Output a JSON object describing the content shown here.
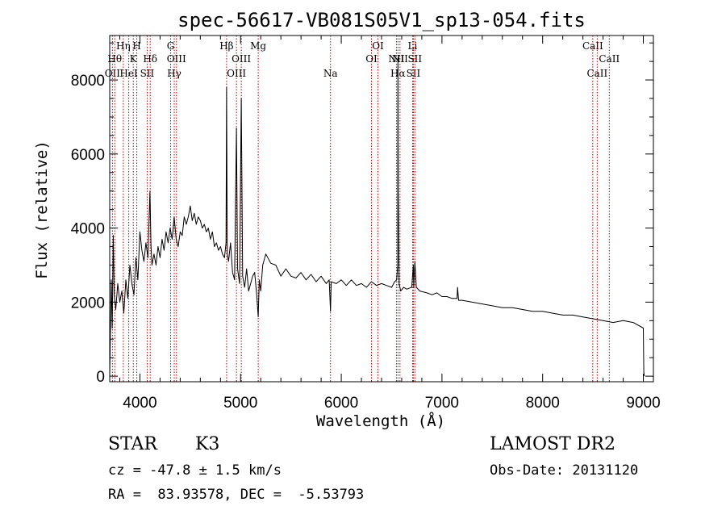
{
  "chart_data": {
    "type": "line",
    "title": "spec-56617-VB081S05V1_sp13-054.fits",
    "xlabel": "Wavelength (Å)",
    "ylabel": "Flux (relative)",
    "xlim": [
      3700,
      9100
    ],
    "ylim": [
      -150,
      9200
    ],
    "xticks": [
      4000,
      5000,
      6000,
      7000,
      8000,
      9000
    ],
    "xtick_labels": [
      "4000",
      "5000",
      "6000",
      "7000",
      "8000",
      "9000"
    ],
    "yticks": [
      0,
      2000,
      4000,
      6000,
      8000
    ],
    "ytick_labels": [
      "0",
      "2000",
      "4000",
      "6000",
      "8000"
    ],
    "grid": false,
    "series": [
      {
        "x": [
          3700,
          3715,
          3725,
          3735,
          3745,
          3760,
          3780,
          3800,
          3820,
          3840,
          3860,
          3880,
          3900,
          3920,
          3940,
          3960,
          3980,
          4000,
          4020,
          4040,
          4060,
          4080,
          4100,
          4110,
          4120,
          4140,
          4160,
          4180,
          4200,
          4220,
          4240,
          4260,
          4280,
          4300,
          4320,
          4340,
          4360,
          4380,
          4400,
          4420,
          4440,
          4460,
          4480,
          4500,
          4520,
          4540,
          4560,
          4580,
          4600,
          4620,
          4640,
          4660,
          4680,
          4700,
          4720,
          4740,
          4760,
          4780,
          4800,
          4820,
          4840,
          4855,
          4861,
          4867,
          4880,
          4900,
          4920,
          4940,
          4959,
          4970,
          4990,
          5007,
          5020,
          5040,
          5060,
          5080,
          5100,
          5120,
          5140,
          5160,
          5175,
          5185,
          5200,
          5220,
          5250,
          5300,
          5350,
          5400,
          5450,
          5500,
          5550,
          5600,
          5650,
          5700,
          5750,
          5800,
          5850,
          5880,
          5893,
          5900,
          5950,
          6000,
          6050,
          6100,
          6150,
          6200,
          6250,
          6300,
          6350,
          6400,
          6450,
          6500,
          6530,
          6550,
          6560,
          6563,
          6566,
          6575,
          6590,
          6620,
          6650,
          6700,
          6716,
          6720,
          6731,
          6745,
          6780,
          6850,
          6900,
          6950,
          7000,
          7050,
          7100,
          7150,
          7155,
          7165,
          7200,
          7300,
          7400,
          7500,
          7600,
          7700,
          7800,
          7900,
          8000,
          8100,
          8200,
          8300,
          8400,
          8500,
          8600,
          8700,
          8800,
          8900,
          9000,
          9005,
          9010
        ],
        "values": [
          0,
          2600,
          1300,
          3800,
          2200,
          1800,
          2500,
          2000,
          2300,
          1700,
          2600,
          2100,
          3000,
          2500,
          2200,
          3200,
          2600,
          3900,
          3400,
          3100,
          3600,
          3200,
          5000,
          3500,
          3000,
          3300,
          3000,
          3500,
          3200,
          3700,
          3400,
          3900,
          3600,
          4000,
          3700,
          4300,
          3700,
          3500,
          3900,
          3800,
          4300,
          4100,
          4300,
          4600,
          4200,
          4400,
          4100,
          4300,
          4200,
          4000,
          4100,
          3900,
          4000,
          3700,
          3900,
          3500,
          3600,
          3400,
          3500,
          3300,
          3200,
          3600,
          7800,
          3300,
          3100,
          3600,
          2800,
          2600,
          6700,
          2900,
          2500,
          7500,
          2700,
          2400,
          2900,
          2300,
          2500,
          2700,
          2800,
          2200,
          1600,
          2600,
          2300,
          3000,
          3300,
          3050,
          3000,
          2700,
          2900,
          2700,
          2650,
          2800,
          2600,
          2750,
          2550,
          2700,
          2500,
          2600,
          1750,
          2550,
          2500,
          2600,
          2450,
          2600,
          2450,
          2500,
          2400,
          2550,
          2450,
          2500,
          2450,
          2400,
          2550,
          2600,
          3000,
          8600,
          5000,
          2500,
          2300,
          2400,
          2350,
          2400,
          3000,
          2400,
          3100,
          2400,
          2300,
          2250,
          2200,
          2250,
          2150,
          2150,
          2100,
          2100,
          2400,
          2050,
          2050,
          2000,
          1950,
          1900,
          1850,
          1850,
          1800,
          1750,
          1750,
          1700,
          1650,
          1650,
          1600,
          1550,
          1500,
          1450,
          1500,
          1450,
          1300,
          100,
          0
        ]
      }
    ],
    "line_markers": [
      {
        "label": "OII",
        "x": 3727,
        "row": 3
      },
      {
        "label": "Hθ",
        "x": 3750,
        "row": 2
      },
      {
        "label": "Hη",
        "x": 3835,
        "row": 1
      },
      {
        "label": "HeI",
        "x": 3889,
        "row": 3
      },
      {
        "label": "K",
        "x": 3934,
        "row": 2
      },
      {
        "label": "H",
        "x": 3969,
        "row": 1
      },
      {
        "label": "SII",
        "x": 4072,
        "row": 3
      },
      {
        "label": "Hδ",
        "x": 4102,
        "row": 2
      },
      {
        "label": "G",
        "x": 4305,
        "row": 1
      },
      {
        "label": "Hγ",
        "x": 4341,
        "row": 3
      },
      {
        "label": "OIII",
        "x": 4363,
        "row": 2
      },
      {
        "label": "Hβ",
        "x": 4861,
        "row": 1
      },
      {
        "label": "OIII",
        "x": 4959,
        "row": 3
      },
      {
        "label": "OIII",
        "x": 5007,
        "row": 2
      },
      {
        "label": "Mg",
        "x": 5175,
        "row": 1
      },
      {
        "label": "Na",
        "x": 5893,
        "row": 3
      },
      {
        "label": "OI",
        "x": 6300,
        "row": 2
      },
      {
        "label": "OI",
        "x": 6364,
        "row": 1
      },
      {
        "label": "NII",
        "x": 6548,
        "row": 2
      },
      {
        "label": "Hα",
        "x": 6563,
        "row": 3
      },
      {
        "label": "NII",
        "x": 6583,
        "row": 2
      },
      {
        "label": "Li",
        "x": 6708,
        "row": 1
      },
      {
        "label": "SII",
        "x": 6716,
        "row": 3
      },
      {
        "label": "SII",
        "x": 6731,
        "row": 2
      },
      {
        "label": "CaII",
        "x": 8498,
        "row": 1
      },
      {
        "label": "CaII",
        "x": 8542,
        "row": 3
      },
      {
        "label": "CaII",
        "x": 8662,
        "row": 2
      }
    ]
  },
  "info": {
    "star_class": "STAR",
    "subclass": "K3",
    "survey": "LAMOST DR2",
    "cz": "cz = -47.8 ± 1.5 km/s",
    "obs_date": "Obs-Date: 20131120",
    "coords": "RA =  83.93578, DEC =  -5.53793"
  },
  "colors": {
    "spectrum": "#000000",
    "marker_line": "#c00000",
    "axes": "#000000",
    "background": "#ffffff"
  }
}
